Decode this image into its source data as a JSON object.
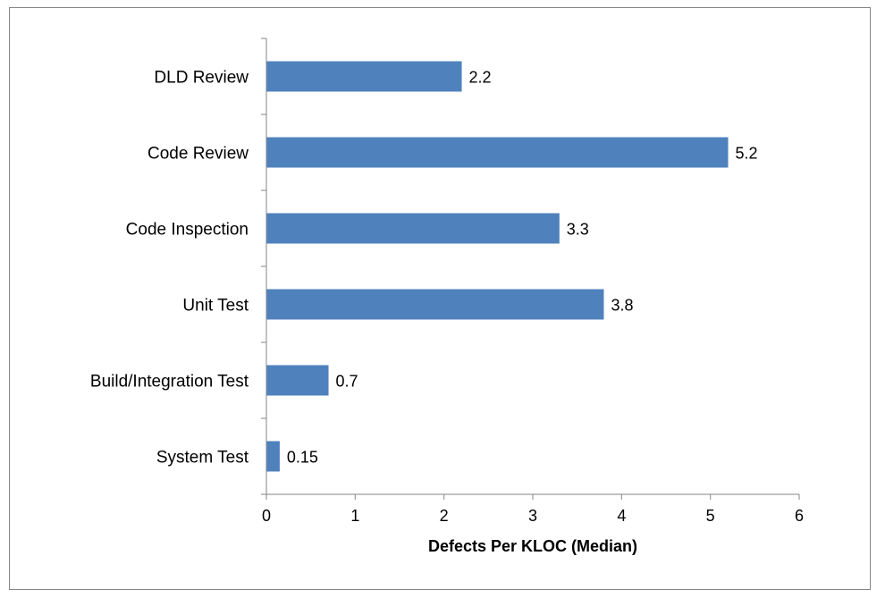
{
  "chart_data": {
    "type": "bar",
    "orientation": "horizontal",
    "categories": [
      "DLD Review",
      "Code Review",
      "Code Inspection",
      "Unit Test",
      "Build/Integration Test",
      "System Test"
    ],
    "values": [
      2.2,
      5.2,
      3.3,
      3.8,
      0.7,
      0.15
    ],
    "data_labels": [
      "2.2",
      "5.2",
      "3.3",
      "3.8",
      "0.7",
      "0.15"
    ],
    "xlabel": "Defects Per KLOC (Median)",
    "ylabel": "",
    "xlim": [
      0,
      6
    ],
    "x_ticks": [
      "0",
      "1",
      "2",
      "3",
      "4",
      "5",
      "6"
    ],
    "grid": false,
    "legend": "none",
    "bar_color": "#4f81bd",
    "axis_color": "#868686"
  }
}
